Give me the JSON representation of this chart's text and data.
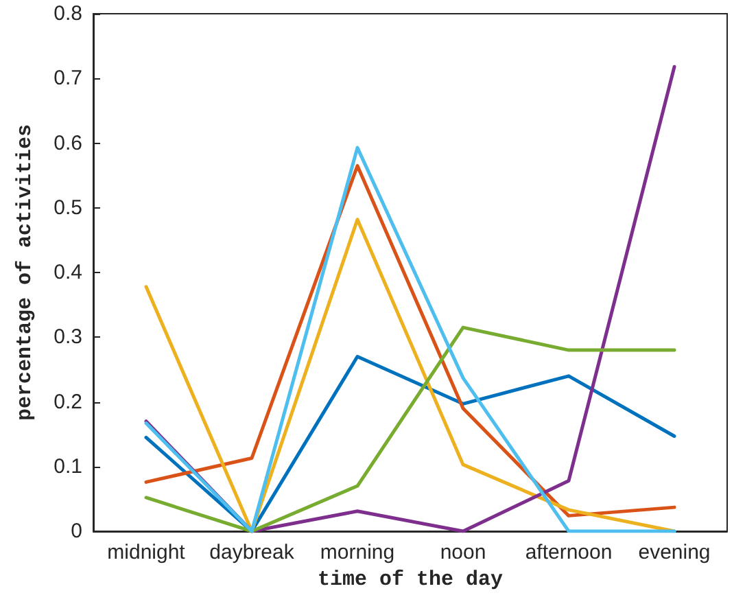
{
  "chart_data": {
    "type": "line",
    "xlabel": "time of the day",
    "ylabel": "percentage of activities",
    "categories": [
      "midnight",
      "daybreak",
      "morning",
      "noon",
      "afternoon",
      "evening"
    ],
    "series": [
      {
        "color": "#0072bd",
        "values": [
          0.145,
          0,
          0.27,
          0.197,
          0.24,
          0.147
        ]
      },
      {
        "color": "#d95319",
        "values": [
          0.076,
          0.113,
          0.565,
          0.19,
          0.024,
          0.037
        ]
      },
      {
        "color": "#edb120",
        "values": [
          0.378,
          0,
          0.482,
          0.103,
          0.033,
          0
        ]
      },
      {
        "color": "#7e2f8e",
        "values": [
          0.17,
          0,
          0.031,
          0,
          0.078,
          0.718
        ]
      },
      {
        "color": "#77ac30",
        "values": [
          0.052,
          0,
          0.07,
          0.315,
          0.28,
          0.28
        ]
      },
      {
        "color": "#4dbeee",
        "values": [
          0.167,
          0,
          0.593,
          0.237,
          0,
          0
        ]
      }
    ],
    "ylim": [
      0,
      0.8
    ],
    "yticks": [
      0,
      0.1,
      0.2,
      0.3,
      0.4,
      0.5,
      0.6,
      0.7,
      0.8
    ],
    "grid": false,
    "marker": "none",
    "line_style": "solid"
  }
}
